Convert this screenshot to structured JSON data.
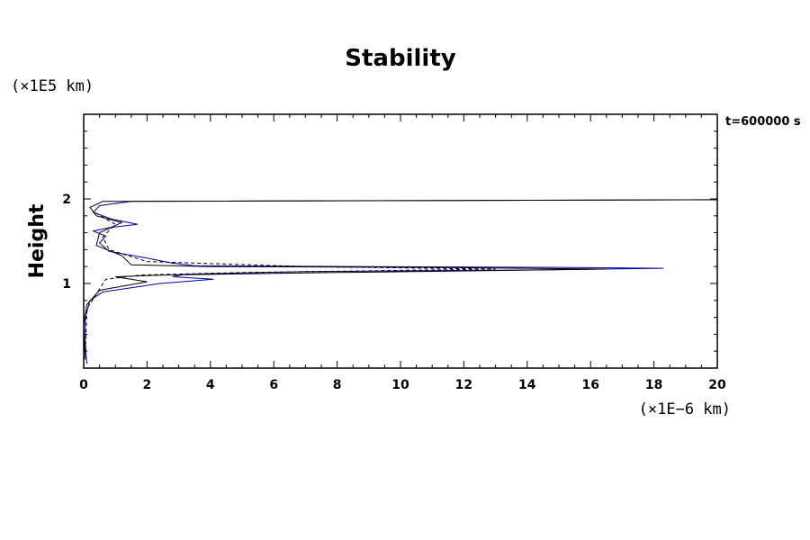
{
  "chart_data": {
    "type": "line",
    "title": "Stability",
    "ylabel": "Height",
    "y_unit_label": "(×1E5 km)",
    "x_unit_label": "(×1E−6 km)",
    "time_label": "t=600000 s",
    "xlim": [
      0,
      20
    ],
    "ylim": [
      0,
      3
    ],
    "x_ticks": [
      0,
      2,
      4,
      6,
      8,
      10,
      12,
      14,
      16,
      18,
      20
    ],
    "y_ticks": [
      1,
      2
    ],
    "grid": false,
    "colors": {
      "series_blue": "#0000aa",
      "series_black": "#000000",
      "axis": "#000000"
    },
    "series": [
      {
        "color": "#0000aa",
        "dash": false,
        "points": [
          [
            0.1,
            0.05
          ],
          [
            0.05,
            0.3
          ],
          [
            0.05,
            0.6
          ],
          [
            0.2,
            0.8
          ],
          [
            0.6,
            0.9
          ],
          [
            1.5,
            0.95
          ],
          [
            2.4,
            1.0
          ],
          [
            4.1,
            1.05
          ],
          [
            2.8,
            1.08
          ],
          [
            3.2,
            1.11
          ],
          [
            7.0,
            1.14
          ],
          [
            14.0,
            1.16
          ],
          [
            18.3,
            1.18
          ],
          [
            15.0,
            1.19
          ],
          [
            9.0,
            1.2
          ],
          [
            3.5,
            1.21
          ],
          [
            2.8,
            1.24
          ],
          [
            2.0,
            1.3
          ],
          [
            0.8,
            1.38
          ],
          [
            0.5,
            1.48
          ],
          [
            0.7,
            1.56
          ],
          [
            0.3,
            1.62
          ],
          [
            0.8,
            1.66
          ],
          [
            1.7,
            1.7
          ],
          [
            0.9,
            1.76
          ],
          [
            0.3,
            1.84
          ],
          [
            0.5,
            1.92
          ],
          [
            1.5,
            1.97
          ],
          [
            10.5,
            1.98
          ],
          [
            20.0,
            1.99
          ]
        ]
      },
      {
        "color": "#000000",
        "dash": false,
        "points": [
          [
            0.05,
            0.1
          ],
          [
            0.0,
            0.5
          ],
          [
            0.1,
            0.75
          ],
          [
            0.5,
            0.92
          ],
          [
            2.0,
            1.02
          ],
          [
            1.0,
            1.08
          ],
          [
            2.5,
            1.1
          ],
          [
            8.0,
            1.13
          ],
          [
            16.5,
            1.17
          ],
          [
            11.0,
            1.19
          ],
          [
            4.0,
            1.2
          ],
          [
            1.5,
            1.22
          ],
          [
            1.2,
            1.33
          ],
          [
            0.4,
            1.45
          ],
          [
            0.5,
            1.6
          ],
          [
            1.2,
            1.72
          ],
          [
            0.4,
            1.8
          ],
          [
            0.2,
            1.9
          ],
          [
            0.6,
            1.97
          ],
          [
            20.0,
            1.99
          ]
        ]
      },
      {
        "color": "#000000",
        "dash": true,
        "points": [
          [
            0.05,
            0.2
          ],
          [
            0.1,
            0.7
          ],
          [
            0.7,
            1.05
          ],
          [
            1.8,
            1.1
          ],
          [
            5.0,
            1.13
          ],
          [
            13.0,
            1.17
          ],
          [
            7.0,
            1.2
          ],
          [
            2.0,
            1.26
          ],
          [
            0.8,
            1.4
          ],
          [
            0.6,
            1.55
          ],
          [
            1.0,
            1.7
          ],
          [
            0.3,
            1.85
          ]
        ]
      }
    ]
  }
}
